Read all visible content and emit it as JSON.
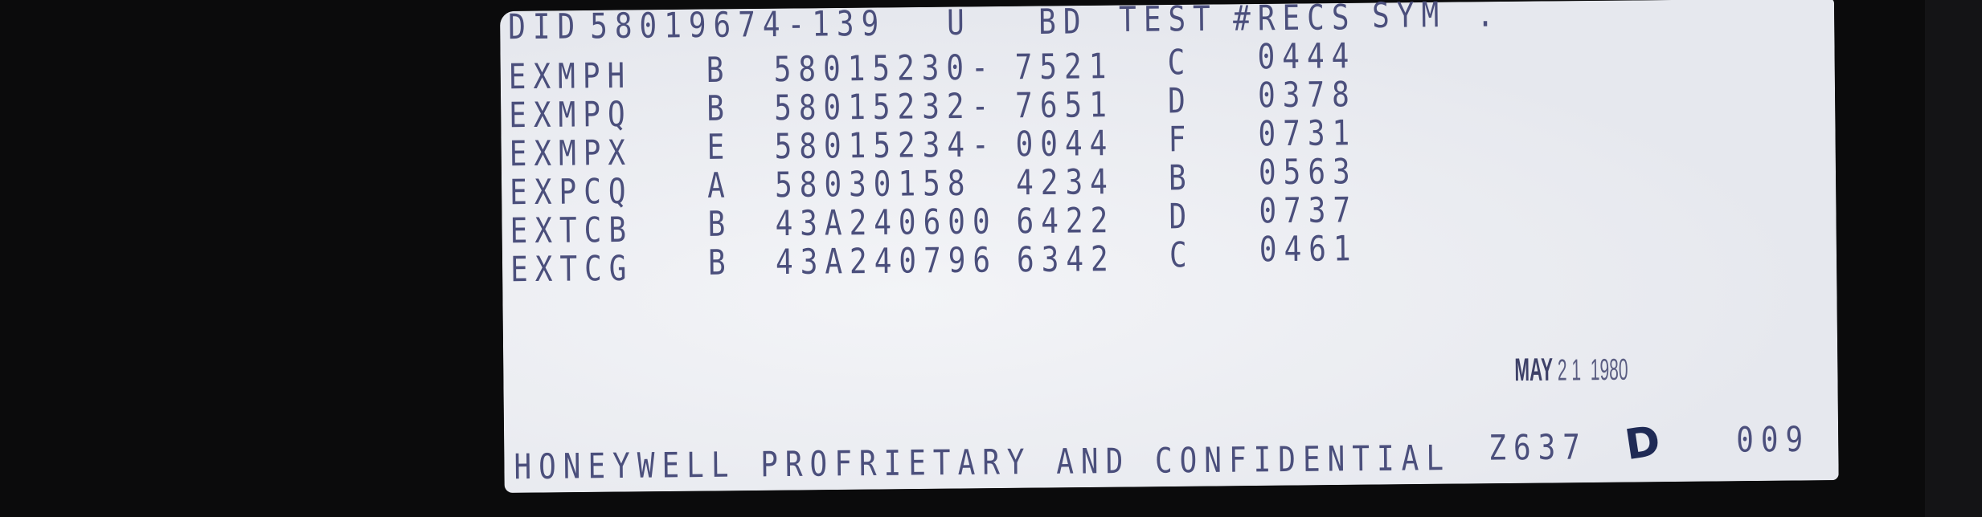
{
  "header": {
    "did_label": "DID",
    "did": "58019674-139",
    "u": "U",
    "bd": "BD",
    "test": "TEST",
    "recs": "#RECS",
    "sym": "SYM",
    "dot": "."
  },
  "rows": [
    {
      "name": "EXMPH",
      "grade": "B",
      "number": "58015230-",
      "test": "7521",
      "sym": "C",
      "recs": "0444"
    },
    {
      "name": "EXMPQ",
      "grade": "B",
      "number": "58015232-",
      "test": "7651",
      "sym": "D",
      "recs": "0378"
    },
    {
      "name": "EXMPX",
      "grade": "E",
      "number": "58015234-",
      "test": "0044",
      "sym": "F",
      "recs": "0731"
    },
    {
      "name": "EXPCQ",
      "grade": "A",
      "number": "58030158",
      "test": "4234",
      "sym": "B",
      "recs": "0563"
    },
    {
      "name": "EXTCB",
      "grade": "B",
      "number": "43A240600",
      "test": "6422",
      "sym": "D",
      "recs": "0737"
    },
    {
      "name": "EXTCG",
      "grade": "B",
      "number": "43A240796",
      "test": "6342",
      "sym": "C",
      "recs": "0461"
    }
  ],
  "stamp": {
    "month": "MAY",
    "day": "2 1",
    "year": "1980"
  },
  "footer": {
    "notice": "HONEYWELL PROFRIETARY AND CONFIDENTIAL",
    "code": "Z637",
    "handwritten_mark": "D",
    "page": "009"
  },
  "colors": {
    "ink": "#4b4f7c",
    "paper": "#eceef2",
    "background": "#0b0b0c"
  }
}
